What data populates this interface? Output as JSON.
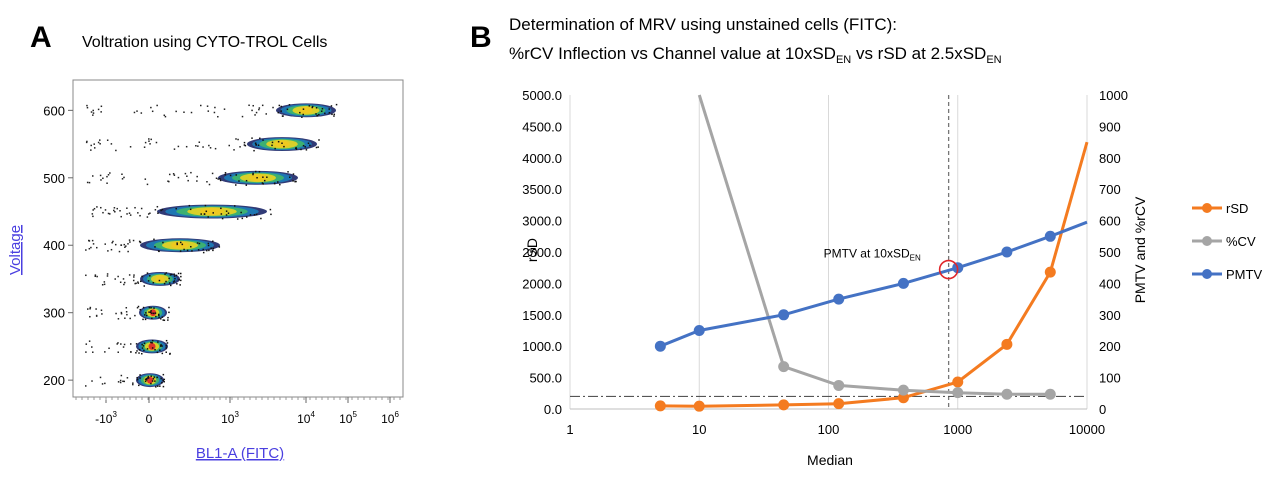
{
  "panel_a": {
    "letter": "A",
    "title": "Voltration using CYTO-TROL Cells",
    "xlabel": "BL1-A (FITC)",
    "ylabel": "Voltage",
    "yticks": [
      "200",
      "300",
      "400",
      "500",
      "600"
    ],
    "xticks": [
      {
        "base": "-10",
        "exp": "3"
      },
      {
        "base": "0",
        "exp": ""
      },
      {
        "base": "10",
        "exp": "3"
      },
      {
        "base": "10",
        "exp": "4"
      },
      {
        "base": "10",
        "exp": "5"
      },
      {
        "base": "10",
        "exp": "6"
      }
    ]
  },
  "panel_b": {
    "letter": "B",
    "title_line1": "Determination of MRV using unstained cells (FITC):",
    "title_line2_a": "%rCV Inflection vs Channel value at 10xSD",
    "title_line2_sub1": "EN",
    "title_line2_b": " vs rSD at 2.5xSD",
    "title_line2_sub2": "EN",
    "annotation": "PMTV at 10xSD",
    "annotation_sub": "EN"
  },
  "chart_data": [
    {
      "type": "scatter",
      "title": "Voltration using CYTO-TROL Cells",
      "xlabel": "BL1-A (FITC)",
      "ylabel": "Voltage",
      "x_scale": "biexponential",
      "ylim": [
        175,
        645
      ],
      "populations": [
        {
          "voltage": 200,
          "center": 5
        },
        {
          "voltage": 250,
          "center": 20
        },
        {
          "voltage": 300,
          "center": 40
        },
        {
          "voltage": 350,
          "center": 100
        },
        {
          "voltage": 400,
          "center": 250
        },
        {
          "voltage": 450,
          "center": 1500
        },
        {
          "voltage": 500,
          "center": 4000
        },
        {
          "voltage": 550,
          "center": 7000
        },
        {
          "voltage": 600,
          "center": 12000
        }
      ]
    },
    {
      "type": "line",
      "xlabel": "Median",
      "ylabel": "rSD",
      "y2label": "PMTV and %rCV",
      "x_scale": "log",
      "xlim": [
        1,
        10000
      ],
      "ylim": [
        0,
        5000
      ],
      "y2lim": [
        0,
        1000
      ],
      "x_ticks": [
        "1",
        "10",
        "100",
        "1000",
        "10000"
      ],
      "y_ticks": [
        "0.0",
        "500.0",
        "1000.0",
        "1500.0",
        "2000.0",
        "2500.0",
        "3000.0",
        "3500.0",
        "4000.0",
        "4500.0",
        "5000.0"
      ],
      "y2_ticks": [
        "0",
        "100",
        "200",
        "300",
        "400",
        "500",
        "600",
        "700",
        "800",
        "900",
        "1000"
      ],
      "legend": "right",
      "series": [
        {
          "name": "rSD",
          "axis": "left",
          "color": "#f47b20",
          "x": [
            5,
            10,
            45,
            120,
            380,
            1000,
            2400,
            5200,
            10000
          ],
          "y": [
            50,
            45,
            65,
            85,
            180,
            430,
            1030,
            2180,
            4250
          ]
        },
        {
          "name": "%CV",
          "axis": "right",
          "color": "#a5a5a5",
          "x": [
            10,
            45,
            120,
            380,
            1000,
            2400,
            5200
          ],
          "y": [
            1000,
            135,
            75,
            60,
            52,
            47,
            47
          ]
        },
        {
          "name": "PMTV",
          "axis": "right",
          "color": "#4472c4",
          "x": [
            5,
            10,
            45,
            120,
            380,
            1000,
            2400,
            5200,
            10000
          ],
          "y": [
            200,
            250,
            300,
            350,
            400,
            450,
            500,
            550,
            595
          ]
        }
      ],
      "reference_lines": {
        "vertical_x": 850,
        "horizontal_y": 200
      },
      "highlight_point": {
        "x": 850,
        "y": 2220
      }
    }
  ],
  "colors": {
    "rsd": "#f47b20",
    "cv": "#a5a5a5",
    "pmtv": "#4472c4",
    "link": "#4a3fe0",
    "highlight": "#e0262a"
  }
}
